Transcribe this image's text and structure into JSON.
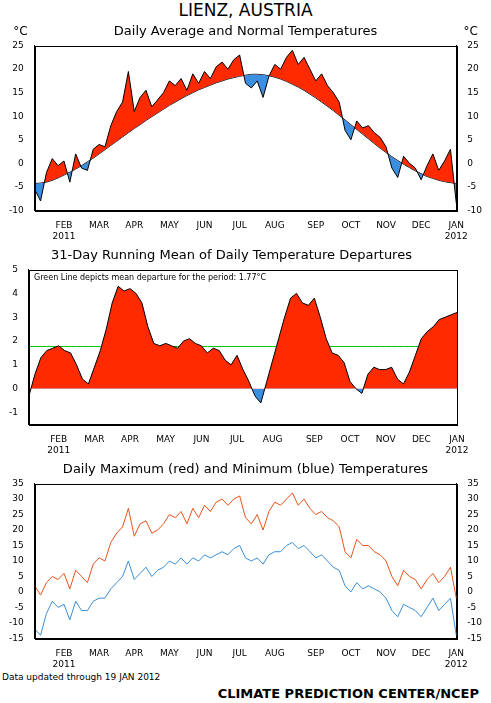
{
  "title": "LIENZ, AUSTRIA",
  "footer_left": "Data updated through 19 JAN 2012",
  "footer_right": "CLIMATE PREDICTION CENTER/NCEP",
  "chart_data": [
    {
      "type": "area",
      "title": "Daily Average and Normal Temperatures",
      "y_label": "°C",
      "categories": [
        null,
        null,
        null,
        null,
        null,
        "FEB 2011",
        null,
        null,
        null,
        null,
        null,
        "MAR",
        null,
        null,
        null,
        null,
        null,
        "APR",
        null,
        null,
        null,
        null,
        null,
        "MAY",
        null,
        null,
        null,
        null,
        null,
        "JUN",
        null,
        null,
        null,
        null,
        null,
        "JUL",
        null,
        null,
        null,
        null,
        null,
        "AUG",
        null,
        null,
        null,
        null,
        null,
        null,
        "SEP",
        null,
        null,
        null,
        null,
        null,
        "OCT",
        null,
        null,
        null,
        null,
        null,
        "NOV",
        null,
        null,
        null,
        null,
        null,
        "DEC",
        null,
        null,
        null,
        null,
        null,
        "JAN 2012"
      ],
      "series": [
        {
          "name": "Average",
          "color": "#000000",
          "values": [
            -5.5,
            -8.0,
            -2.0,
            1.0,
            -0.5,
            0.5,
            -4.0,
            2.0,
            -1.0,
            -1.5,
            3.0,
            4.0,
            3.5,
            8.0,
            11.0,
            13.0,
            19.5,
            11.0,
            14.0,
            15.5,
            12.0,
            13.5,
            15.0,
            17.5,
            16.5,
            18.0,
            15.5,
            19.0,
            17.0,
            19.5,
            18.0,
            20.5,
            21.5,
            20.0,
            22.0,
            23.0,
            17.0,
            16.0,
            17.5,
            14.0,
            18.5,
            21.0,
            20.0,
            22.5,
            24.0,
            21.0,
            22.5,
            20.0,
            17.5,
            19.0,
            16.5,
            15.0,
            13.0,
            7.0,
            5.0,
            9.0,
            7.5,
            8.0,
            6.5,
            5.5,
            3.5,
            -1.0,
            -3.0,
            1.5,
            0.0,
            -1.0,
            -3.5,
            -0.5,
            2.0,
            -1.5,
            0.5,
            3.0,
            -8.5
          ]
        },
        {
          "name": "Normal",
          "color": "#000000",
          "values": [
            -4.3,
            -4.2,
            -4.0,
            -3.6,
            -3.1,
            -2.5,
            -1.9,
            -1.2,
            -0.5,
            0.3,
            1.1,
            2.0,
            2.9,
            3.8,
            4.7,
            5.6,
            6.5,
            7.4,
            8.2,
            9.1,
            9.9,
            10.7,
            11.5,
            12.3,
            13.0,
            13.7,
            14.4,
            15.0,
            15.6,
            16.1,
            16.6,
            17.1,
            17.5,
            17.9,
            18.2,
            18.5,
            18.7,
            18.9,
            18.9,
            18.8,
            18.6,
            18.3,
            17.9,
            17.4,
            16.8,
            16.2,
            15.5,
            14.7,
            13.9,
            13.0,
            12.1,
            11.2,
            10.2,
            9.2,
            8.2,
            7.2,
            6.2,
            5.2,
            4.2,
            3.2,
            2.3,
            1.4,
            0.6,
            -0.2,
            -0.9,
            -1.6,
            -2.2,
            -2.8,
            -3.2,
            -3.6,
            -3.9,
            -4.1,
            -4.3
          ]
        }
      ],
      "ylim": [
        -10,
        25
      ],
      "yticks": [
        -10,
        -5,
        0,
        5,
        10,
        15,
        20,
        25
      ],
      "y2lim": [
        -10,
        25
      ],
      "y2ticks": [
        -10,
        -5,
        0,
        5,
        10,
        15,
        20,
        25
      ],
      "grid": false
    },
    {
      "type": "area",
      "title": "31-Day Running Mean of Daily Temperature Departures",
      "annotation": "Green Line depicts mean departure for the period: 1.77°C",
      "mean_departure": 1.77,
      "categories": [
        null,
        null,
        null,
        null,
        null,
        "FEB 2011",
        null,
        null,
        null,
        null,
        null,
        "MAR",
        null,
        null,
        null,
        null,
        null,
        "APR",
        null,
        null,
        null,
        null,
        null,
        "MAY",
        null,
        null,
        null,
        null,
        null,
        "JUN",
        null,
        null,
        null,
        null,
        null,
        "JUL",
        null,
        null,
        null,
        null,
        null,
        "AUG",
        null,
        null,
        null,
        null,
        null,
        null,
        "SEP",
        null,
        null,
        null,
        null,
        null,
        "OCT",
        null,
        null,
        null,
        null,
        null,
        "NOV",
        null,
        null,
        null,
        null,
        null,
        "DEC",
        null,
        null,
        null,
        null,
        null,
        "JAN 2012"
      ],
      "series": [
        {
          "name": "31-Day Running Mean",
          "color": "#ff2a00",
          "values": [
            -0.3,
            0.6,
            1.3,
            1.6,
            1.7,
            1.8,
            1.6,
            1.5,
            1.0,
            0.4,
            0.2,
            0.9,
            1.6,
            2.5,
            3.6,
            4.3,
            4.1,
            4.2,
            4.0,
            3.6,
            2.6,
            1.9,
            1.8,
            1.9,
            1.8,
            1.7,
            2.0,
            2.1,
            1.9,
            1.8,
            1.5,
            1.7,
            1.6,
            1.2,
            1.0,
            1.4,
            0.8,
            0.3,
            -0.3,
            -0.6,
            0.3,
            1.2,
            2.1,
            3.0,
            3.8,
            4.0,
            3.6,
            3.5,
            3.8,
            3.0,
            2.1,
            1.5,
            1.4,
            1.1,
            0.3,
            0.0,
            -0.2,
            0.6,
            0.9,
            0.8,
            0.8,
            0.9,
            0.4,
            0.2,
            0.7,
            1.4,
            2.1,
            2.4,
            2.6,
            2.9,
            3.0,
            3.1,
            3.2
          ]
        }
      ],
      "ylim": [
        -1.5,
        5
      ],
      "yticks": [
        -1,
        0,
        1,
        2,
        3,
        4,
        5
      ],
      "grid": false
    },
    {
      "type": "line",
      "title": "Daily Maximum (red) and Minimum (blue) Temperatures",
      "categories": [
        null,
        null,
        null,
        null,
        null,
        "FEB 2011",
        null,
        null,
        null,
        null,
        null,
        "MAR",
        null,
        null,
        null,
        null,
        null,
        "APR",
        null,
        null,
        null,
        null,
        null,
        "MAY",
        null,
        null,
        null,
        null,
        null,
        "JUN",
        null,
        null,
        null,
        null,
        null,
        "JUL",
        null,
        null,
        null,
        null,
        null,
        "AUG",
        null,
        null,
        null,
        null,
        null,
        null,
        "SEP",
        null,
        null,
        null,
        null,
        null,
        "OCT",
        null,
        null,
        null,
        null,
        null,
        "NOV",
        null,
        null,
        null,
        null,
        null,
        "DEC",
        null,
        null,
        null,
        null,
        null,
        "JAN 2012"
      ],
      "series": [
        {
          "name": "Maximum",
          "color": "#e8531c",
          "values": [
            2,
            -1,
            3,
            5,
            4,
            6,
            1,
            7,
            5,
            3,
            9,
            11,
            10,
            16,
            19,
            21,
            27,
            18,
            22,
            23,
            19,
            20,
            22,
            25,
            24,
            26,
            22,
            27,
            24,
            28,
            26,
            29,
            30,
            28,
            30,
            31,
            24,
            22,
            25,
            20,
            26,
            29,
            28,
            30,
            32,
            28,
            30,
            27,
            25,
            26,
            24,
            23,
            21,
            13,
            11,
            17,
            15,
            15,
            13,
            12,
            10,
            5,
            2,
            7,
            5,
            4,
            1,
            4,
            6,
            3,
            5,
            8,
            -2
          ]
        },
        {
          "name": "Minimum",
          "color": "#3b8fd6",
          "values": [
            -12,
            -14,
            -7,
            -3,
            -5,
            -4,
            -9,
            -3,
            -6,
            -6,
            -3,
            -2,
            -2,
            1,
            3,
            5,
            10,
            4,
            6,
            8,
            5,
            7,
            8,
            10,
            9,
            11,
            9,
            11,
            10,
            12,
            11,
            12,
            13,
            12,
            14,
            15,
            11,
            10,
            11,
            9,
            12,
            13,
            13,
            15,
            16,
            14,
            15,
            13,
            11,
            12,
            10,
            8,
            7,
            2,
            0,
            3,
            1,
            2,
            1,
            0,
            -2,
            -6,
            -8,
            -4,
            -5,
            -6,
            -8,
            -5,
            -2,
            -6,
            -4,
            -2,
            -14
          ]
        }
      ],
      "ylim": [
        -15,
        35
      ],
      "yticks": [
        -15,
        -10,
        -5,
        0,
        5,
        10,
        15,
        20,
        25,
        30,
        35
      ],
      "y2lim": [
        -15,
        35
      ],
      "y2ticks": [
        -15,
        -10,
        -5,
        0,
        5,
        10,
        15,
        20,
        25,
        30,
        35
      ],
      "grid": false
    }
  ]
}
